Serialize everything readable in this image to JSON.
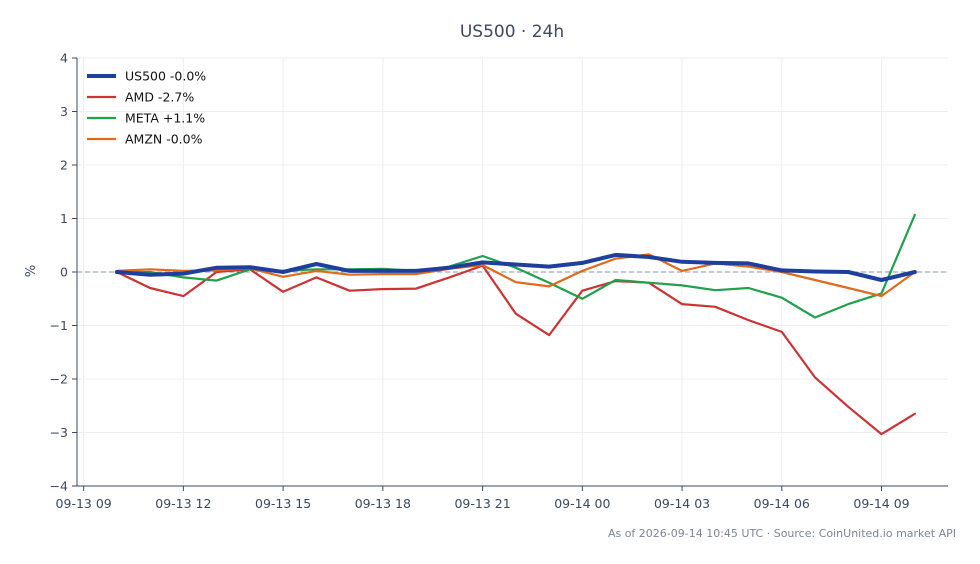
{
  "chart_data": {
    "type": "line",
    "title": "US500 · 24h",
    "ylabel": "%",
    "xlabel": "",
    "ylim": [
      -4,
      4
    ],
    "yticks": [
      -4,
      -3,
      -2,
      -1,
      0,
      1,
      2,
      3,
      4
    ],
    "ytick_labels": [
      "−4",
      "−3",
      "−2",
      "−1",
      "0",
      "1",
      "2",
      "3",
      "4"
    ],
    "xlim": [
      -0.2,
      26.0
    ],
    "xticks": [
      {
        "pos": 0,
        "label": "09-13 09"
      },
      {
        "pos": 3,
        "label": "09-13 12"
      },
      {
        "pos": 6,
        "label": "09-13 15"
      },
      {
        "pos": 9,
        "label": "09-13 18"
      },
      {
        "pos": 12,
        "label": "09-13 21"
      },
      {
        "pos": 15,
        "label": "09-14 00"
      },
      {
        "pos": 18,
        "label": "09-14 03"
      },
      {
        "pos": 21,
        "label": "09-14 06"
      },
      {
        "pos": 24,
        "label": "09-14 09"
      }
    ],
    "x": [
      1,
      2,
      3,
      4,
      5,
      6,
      7,
      8,
      9,
      10,
      11,
      12,
      13,
      14,
      15,
      16,
      17,
      18,
      19,
      20,
      21,
      22,
      23,
      24,
      25
    ],
    "zero_line": true,
    "grid": true,
    "legend_position": "top-left",
    "series": [
      {
        "name": "US500 -0.0%",
        "color": "#1f3f9e",
        "width": 4,
        "values": [
          0.0,
          -0.05,
          -0.03,
          0.08,
          0.09,
          0.0,
          0.15,
          0.02,
          0.02,
          0.02,
          0.08,
          0.18,
          0.14,
          0.1,
          0.17,
          0.32,
          0.28,
          0.19,
          0.17,
          0.16,
          0.03,
          0.01,
          0.0,
          -0.15,
          0.0
        ]
      },
      {
        "name": "AMD -2.7%",
        "color": "#cc3333",
        "width": 2.2,
        "values": [
          0.0,
          -0.3,
          -0.45,
          0.0,
          0.05,
          -0.37,
          -0.1,
          -0.35,
          -0.32,
          -0.31,
          -0.1,
          0.12,
          -0.78,
          -1.18,
          -0.35,
          -0.17,
          -0.2,
          -0.6,
          -0.65,
          -0.9,
          -1.12,
          -1.97,
          -2.52,
          -3.03,
          -2.65
        ]
      },
      {
        "name": "META +1.1%",
        "color": "#22a04b",
        "width": 2.2,
        "values": [
          0.0,
          0.0,
          -0.1,
          -0.16,
          0.05,
          0.02,
          0.05,
          0.05,
          0.06,
          0.02,
          0.1,
          0.3,
          0.08,
          -0.2,
          -0.5,
          -0.15,
          -0.2,
          -0.25,
          -0.34,
          -0.3,
          -0.48,
          -0.85,
          -0.6,
          -0.4,
          1.07
        ]
      },
      {
        "name": "AMZN -0.0%",
        "color": "#e06a1b",
        "width": 2.2,
        "values": [
          0.02,
          0.05,
          0.02,
          0.03,
          0.07,
          -0.09,
          0.02,
          -0.05,
          -0.04,
          -0.04,
          0.06,
          0.13,
          -0.19,
          -0.27,
          0.02,
          0.25,
          0.33,
          0.02,
          0.16,
          0.1,
          0.0,
          -0.15,
          -0.3,
          -0.45,
          0.0
        ]
      }
    ]
  },
  "footer": "As of 2026-09-14 10:45 UTC · Source: CoinUnited.io market API"
}
